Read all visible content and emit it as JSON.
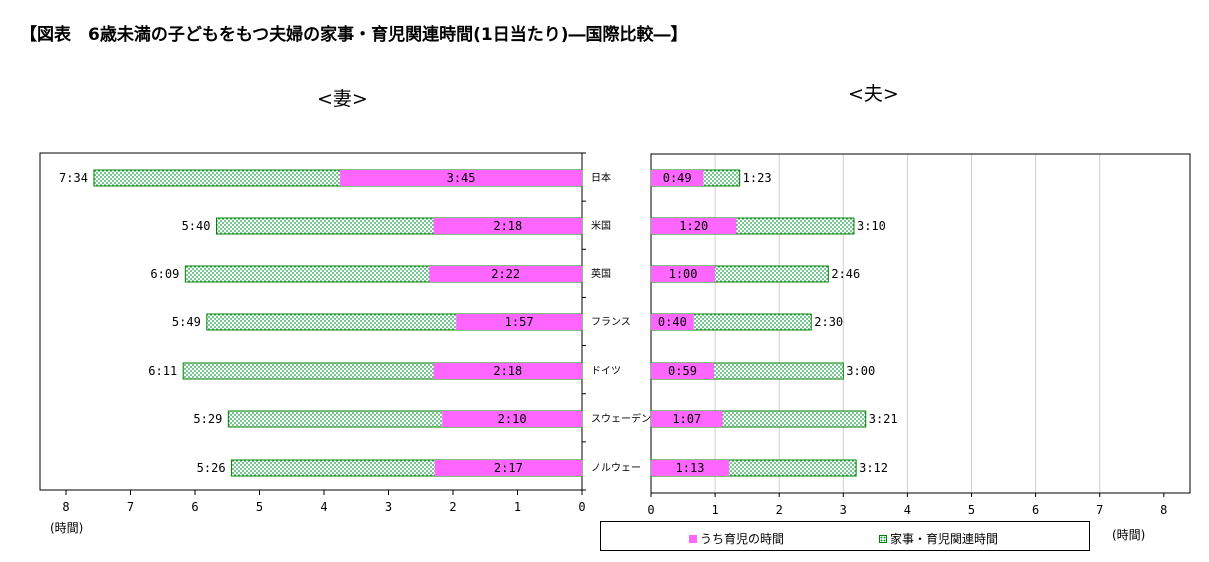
{
  "title": "【図表　6歳未満の子どもをもつ夫婦の家事・育児関連時間(1日当たり)―国際比較―】",
  "wife_label": "<妻>",
  "husband_label": "<夫>",
  "x_unit": "(時間)",
  "colors": {
    "childcare": "#ff66ff",
    "housework_border": "#008000",
    "housework_dots": "#10a040"
  },
  "legend": {
    "childcare": "うち育児の時間",
    "housework": "家事・育児関連時間"
  },
  "chart_data": [
    {
      "type": "bar",
      "orientation": "horizontal",
      "direction": "right-to-left",
      "title": "<妻>",
      "xlabel": "(時間)",
      "xlim": [
        0,
        8
      ],
      "x_ticks": [
        "8",
        "7",
        "6",
        "5",
        "4",
        "3",
        "2",
        "1",
        "0"
      ],
      "grid": false,
      "categories": [
        "日本",
        "米国",
        "英国",
        "フランス",
        "ドイツ",
        "スウェーデン",
        "ノルウェー"
      ],
      "series": [
        {
          "name": "家事・育児関連時間",
          "values": [
            7.5667,
            5.6667,
            6.15,
            5.8167,
            6.1833,
            5.4833,
            5.4333
          ],
          "labels": [
            "7:34",
            "5:40",
            "6:09",
            "5:49",
            "6:11",
            "5:29",
            "5:26"
          ]
        },
        {
          "name": "うち育児の時間",
          "values": [
            3.75,
            2.3,
            2.3667,
            1.95,
            2.3,
            2.1667,
            2.2833
          ],
          "labels": [
            "3:45",
            "2:18",
            "2:22",
            "1:57",
            "2:18",
            "2:10",
            "2:17"
          ]
        }
      ]
    },
    {
      "type": "bar",
      "orientation": "horizontal",
      "direction": "left-to-right",
      "title": "<夫>",
      "xlabel": "(時間)",
      "xlim": [
        0,
        8
      ],
      "x_ticks": [
        "0",
        "1",
        "2",
        "3",
        "4",
        "5",
        "6",
        "7",
        "8"
      ],
      "grid": true,
      "categories": [
        "日本",
        "米国",
        "英国",
        "フランス",
        "ドイツ",
        "スウェーデン",
        "ノルウェー"
      ],
      "series": [
        {
          "name": "家事・育児関連時間",
          "values": [
            1.3833,
            3.1667,
            2.7667,
            2.5,
            3.0,
            3.35,
            3.2
          ],
          "labels": [
            "1:23",
            "3:10",
            "2:46",
            "2:30",
            "3:00",
            "3:21",
            "3:12"
          ]
        },
        {
          "name": "うち育児の時間",
          "values": [
            0.8167,
            1.3333,
            1.0,
            0.6667,
            0.9833,
            1.1167,
            1.2167
          ],
          "labels": [
            "0:49",
            "1:20",
            "1:00",
            "0:40",
            "0:59",
            "1:07",
            "1:13"
          ]
        }
      ]
    }
  ]
}
